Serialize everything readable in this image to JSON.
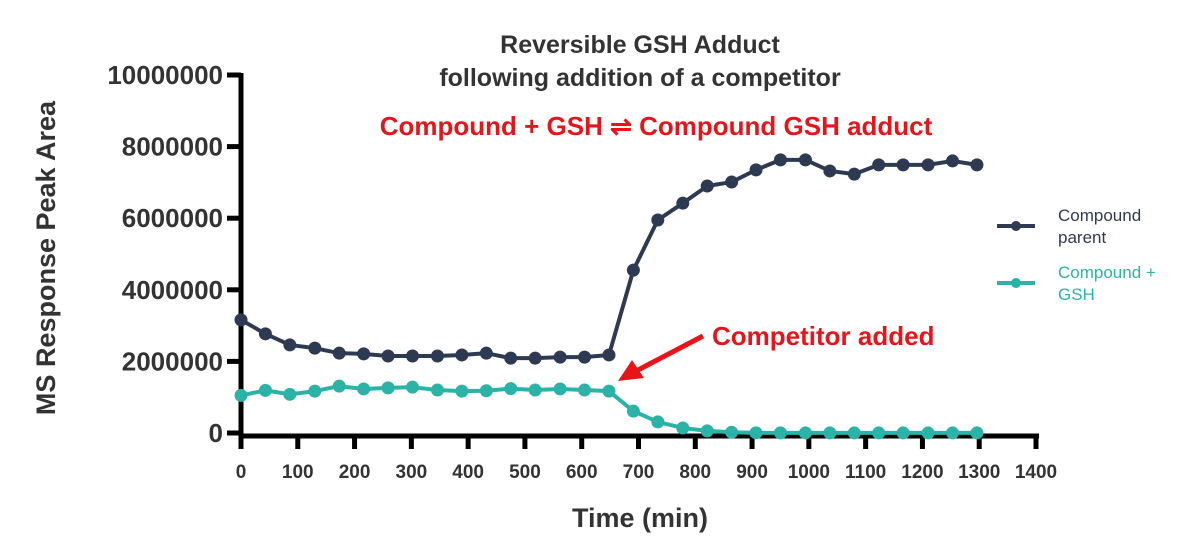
{
  "chart_data": {
    "type": "line",
    "title": "Reversible GSH Adduct",
    "subtitle": "following addition of a competitor",
    "equation": "Compound + GSH ⇌  Compound GSH adduct",
    "xlabel": "Time (min)",
    "ylabel": "MS Response Peak Area",
    "xlim": [
      0,
      1400
    ],
    "ylim": [
      0,
      10000000
    ],
    "x_ticks": [
      "0",
      "100",
      "200",
      "300",
      "400",
      "500",
      "600",
      "700",
      "800",
      "900",
      "1000",
      "1100",
      "1200",
      "1300",
      "1400"
    ],
    "y_ticks": [
      "0",
      "2000000",
      "4000000",
      "6000000",
      "8000000",
      "10000000"
    ],
    "grid": false,
    "legend_position": "right",
    "x": [
      0,
      43,
      86,
      130,
      173,
      216,
      259,
      302,
      346,
      389,
      432,
      475,
      518,
      562,
      605,
      648,
      691,
      734,
      778,
      821,
      864,
      907,
      950,
      994,
      1037,
      1080,
      1123,
      1166,
      1210,
      1253,
      1296
    ],
    "series": [
      {
        "name": "Compound parent",
        "color": "#2e3a52",
        "values": [
          3160000,
          2770000,
          2460000,
          2370000,
          2230000,
          2210000,
          2150000,
          2150000,
          2150000,
          2180000,
          2230000,
          2090000,
          2090000,
          2120000,
          2120000,
          2180000,
          4550000,
          5950000,
          6420000,
          6900000,
          7010000,
          7350000,
          7630000,
          7630000,
          7320000,
          7230000,
          7490000,
          7490000,
          7490000,
          7600000,
          7490000
        ]
      },
      {
        "name": "Compound + GSH",
        "color": "#2ab3a6",
        "values": [
          1050000,
          1190000,
          1080000,
          1170000,
          1310000,
          1230000,
          1260000,
          1280000,
          1200000,
          1170000,
          1180000,
          1240000,
          1200000,
          1230000,
          1200000,
          1170000,
          610000,
          310000,
          140000,
          60000,
          20000,
          5000,
          3000,
          2000,
          2000,
          2000,
          2000,
          2000,
          2000,
          2000,
          2000
        ]
      }
    ],
    "annotations": [
      {
        "text": "Competitor added",
        "x": 648,
        "color": "#e8141a"
      }
    ]
  },
  "legend": {
    "parent_line1": "Compound",
    "parent_line2": "parent",
    "gsh_line1": "Compound +",
    "gsh_line2": "GSH"
  }
}
